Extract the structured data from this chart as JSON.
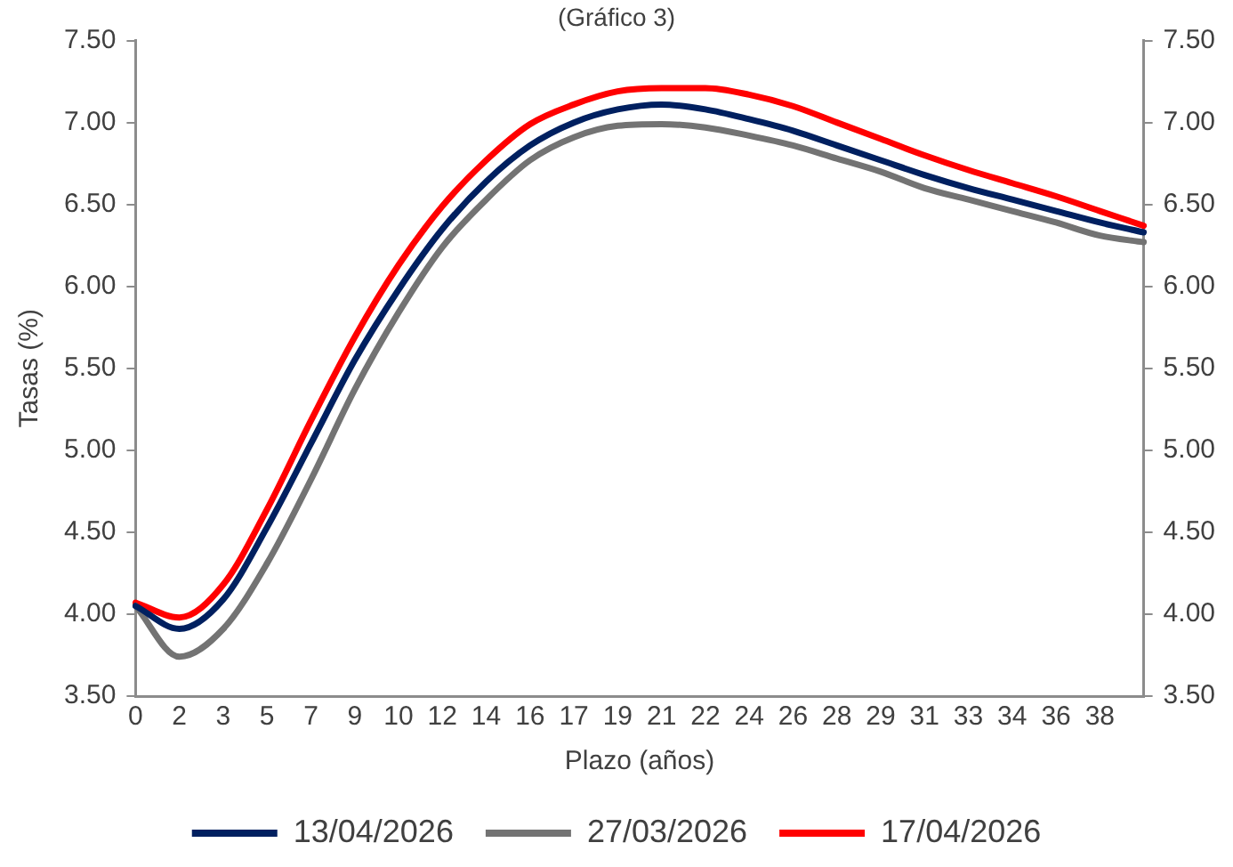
{
  "chart_data": {
    "type": "line",
    "title": "(Gráfico 3)",
    "xlabel": "Plazo (años)",
    "ylabel": "Tasas (%)",
    "categories": [
      "0",
      "2",
      "3",
      "5",
      "7",
      "9",
      "10",
      "12",
      "14",
      "16",
      "17",
      "19",
      "21",
      "22",
      "24",
      "26",
      "28",
      "29",
      "31",
      "33",
      "34",
      "36",
      "38",
      null
    ],
    "series": [
      {
        "name": "13/04/2026",
        "color": "#002060",
        "values": [
          4.05,
          3.91,
          4.09,
          4.53,
          5.04,
          5.55,
          5.98,
          6.35,
          6.64,
          6.86,
          7.0,
          7.08,
          7.11,
          7.08,
          7.02,
          6.95,
          6.86,
          6.77,
          6.68,
          6.6,
          6.53,
          6.46,
          6.39,
          6.33
        ]
      },
      {
        "name": "27/03/2026",
        "color": "#737373",
        "values": [
          4.05,
          3.74,
          3.91,
          4.31,
          4.82,
          5.37,
          5.84,
          6.24,
          6.53,
          6.77,
          6.91,
          6.98,
          6.99,
          6.97,
          6.92,
          6.86,
          6.78,
          6.7,
          6.6,
          6.53,
          6.46,
          6.39,
          6.31,
          6.27
        ]
      },
      {
        "name": "17/04/2026",
        "color": "#ff0000",
        "values": [
          4.07,
          3.98,
          4.18,
          4.64,
          5.18,
          5.69,
          6.13,
          6.49,
          6.77,
          6.99,
          7.11,
          7.19,
          7.21,
          7.21,
          7.17,
          7.1,
          7.0,
          6.9,
          6.8,
          6.71,
          6.63,
          6.55,
          6.46,
          6.37
        ]
      }
    ],
    "ylim": [
      3.5,
      7.5
    ],
    "yticks": [
      {
        "value": 3.5,
        "label": "3.50"
      },
      {
        "value": 4,
        "label": "4.00"
      },
      {
        "value": 4.5,
        "label": "4.50"
      },
      {
        "value": 5,
        "label": "5.00"
      },
      {
        "value": 5.5,
        "label": "5.50"
      },
      {
        "value": 6,
        "label": "6.00"
      },
      {
        "value": 6.5,
        "label": "6.50"
      },
      {
        "value": 7,
        "label": "7.00"
      },
      {
        "value": 7.5,
        "label": "7.50"
      }
    ],
    "y2lim": [
      3.5,
      7.5
    ],
    "y2ticks": [
      {
        "value": 3.5,
        "label": "3.50"
      },
      {
        "value": 4,
        "label": "4.00"
      },
      {
        "value": 4.5,
        "label": "4.50"
      },
      {
        "value": 5,
        "label": "5.00"
      },
      {
        "value": 5.5,
        "label": "5.50"
      },
      {
        "value": 6,
        "label": "6.00"
      },
      {
        "value": 6.5,
        "label": "6.50"
      },
      {
        "value": 7,
        "label": "7.00"
      },
      {
        "value": 7.5,
        "label": "7.50"
      }
    ],
    "grid": false,
    "legend": "bottom",
    "marker": "none",
    "line_style": "solid"
  }
}
